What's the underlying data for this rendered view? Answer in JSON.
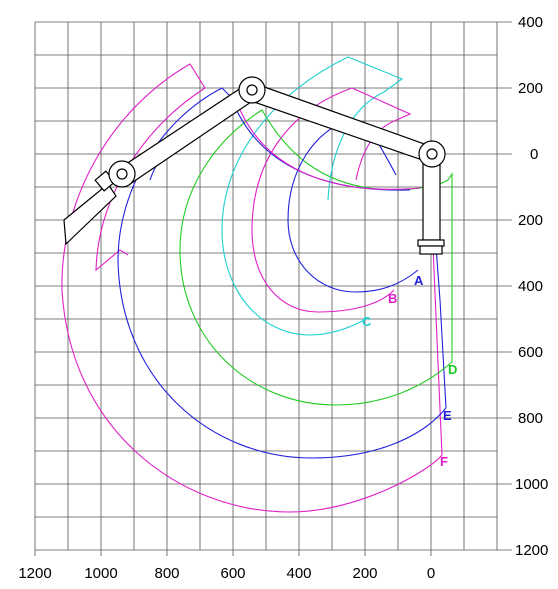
{
  "diagram": {
    "x_axis_labels": [
      "1200",
      "1000",
      "800",
      "600",
      "400",
      "200",
      "0"
    ],
    "y_axis_labels": [
      "400",
      "200",
      "0",
      "200",
      "400",
      "600",
      "800",
      "1000",
      "1200"
    ],
    "envelope_labels": [
      {
        "id": "A",
        "text": "A",
        "color": "#2020dd"
      },
      {
        "id": "B",
        "text": "B",
        "color": "#e020c8"
      },
      {
        "id": "C",
        "text": "C",
        "color": "#20d0d0"
      },
      {
        "id": "D",
        "text": "D",
        "color": "#20cc20"
      },
      {
        "id": "E",
        "text": "E",
        "color": "#2020dd"
      },
      {
        "id": "F",
        "text": "F",
        "color": "#e020c8"
      }
    ],
    "colors": {
      "grid": "#555555",
      "arm_stroke": "#000000",
      "blue": "#2020dd",
      "magenta": "#e020c8",
      "cyan": "#20d0d0",
      "green": "#20cc20"
    }
  }
}
